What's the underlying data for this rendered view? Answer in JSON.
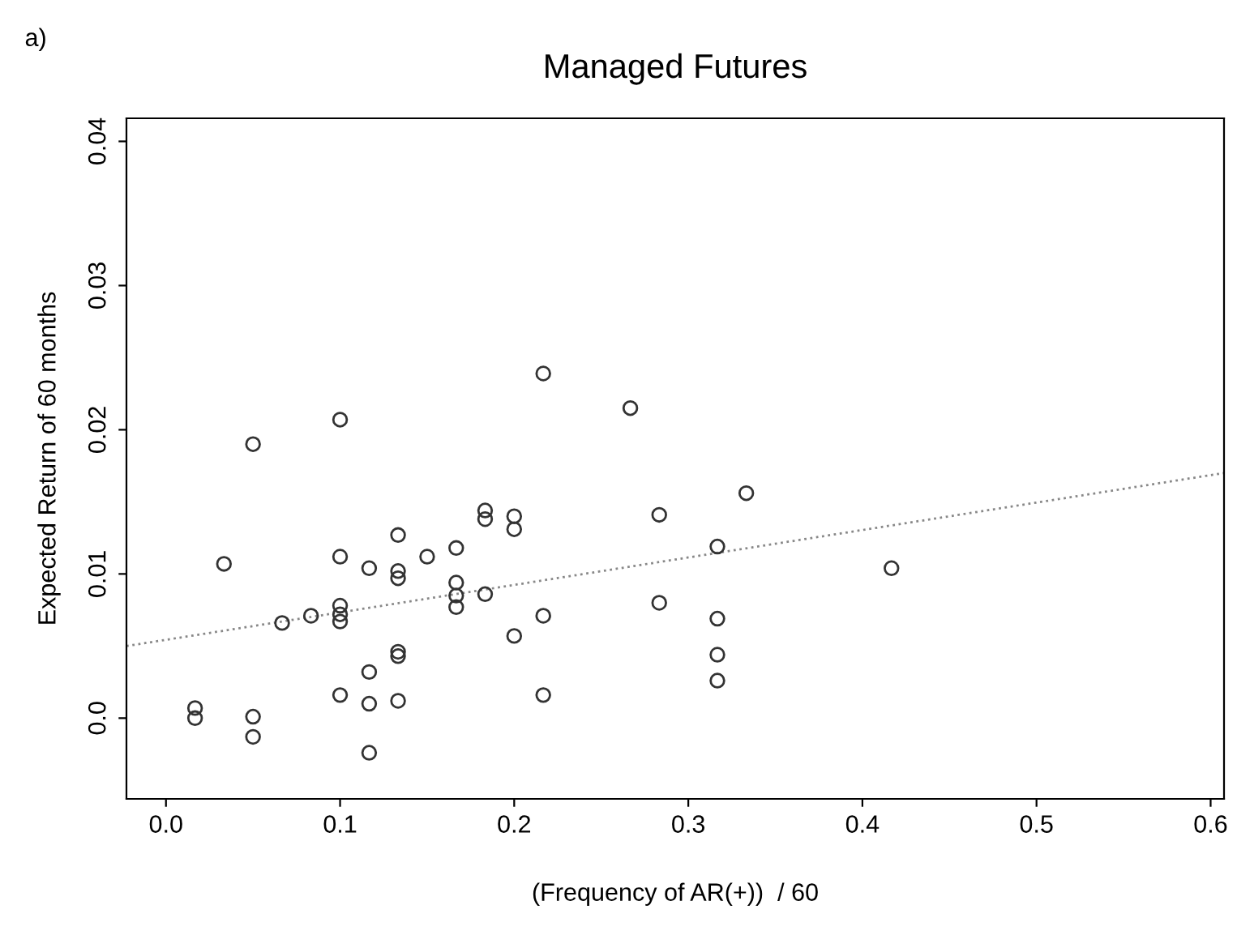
{
  "chart_data": {
    "type": "scatter",
    "title": "Managed Futures",
    "xlabel": "(Frequency of AR(+))  / 60",
    "ylabel": "Expected Return of 60 months",
    "annotations": [
      "a)"
    ],
    "xlim": [
      -0.0227,
      0.6077
    ],
    "ylim": [
      -0.0056,
      0.0416
    ],
    "xticks": [
      {
        "value": 0,
        "label": "0.0"
      },
      0.1,
      0.2,
      0.3,
      0.4,
      0.5,
      0.6
    ],
    "yticks": [
      {
        "value": 0,
        "label": "0.0"
      },
      0.01,
      0.02,
      0.03,
      0.04
    ],
    "grid": false,
    "legend": false,
    "series": [
      {
        "marker": "circle",
        "color": "#333333",
        "x": [
          0.0167,
          0.0167,
          0.0333,
          0.05,
          0.05,
          0.05,
          0.0667,
          0.0833,
          0.1,
          0.1,
          0.1,
          0.1,
          0.1,
          0.1,
          0.1167,
          0.1167,
          0.1167,
          0.1167,
          0.1333,
          0.1333,
          0.1333,
          0.1333,
          0.1333,
          0.1333,
          0.15,
          0.1667,
          0.1667,
          0.1667,
          0.1667,
          0.1833,
          0.1833,
          0.1833,
          0.2,
          0.2,
          0.2,
          0.2167,
          0.2167,
          0.2167,
          0.2667,
          0.2833,
          0.2833,
          0.3167,
          0.3167,
          0.3167,
          0.3167,
          0.3333,
          0.4167
        ],
        "values": [
          0.0007,
          0.0,
          0.0107,
          0.019,
          0.0001,
          -0.0013,
          0.0066,
          0.0071,
          0.0207,
          0.0112,
          0.0078,
          0.0072,
          0.0067,
          0.0016,
          0.0104,
          0.0032,
          0.001,
          -0.0024,
          0.0127,
          0.0102,
          0.0097,
          0.0046,
          0.0043,
          0.0012,
          0.0112,
          0.0118,
          0.0094,
          0.0085,
          0.0077,
          0.0144,
          0.0138,
          0.0086,
          0.014,
          0.0131,
          0.0057,
          0.0239,
          0.0071,
          0.0016,
          0.0215,
          0.0141,
          0.008,
          0.0119,
          0.0069,
          0.0044,
          0.0026,
          0.0156,
          0.0104
        ]
      },
      {
        "type": "line",
        "line_style": "dotted",
        "marker": "none",
        "color": "#888888",
        "x": [
          -0.0227,
          0.6077
        ],
        "values": [
          0.005,
          0.017
        ]
      }
    ]
  }
}
